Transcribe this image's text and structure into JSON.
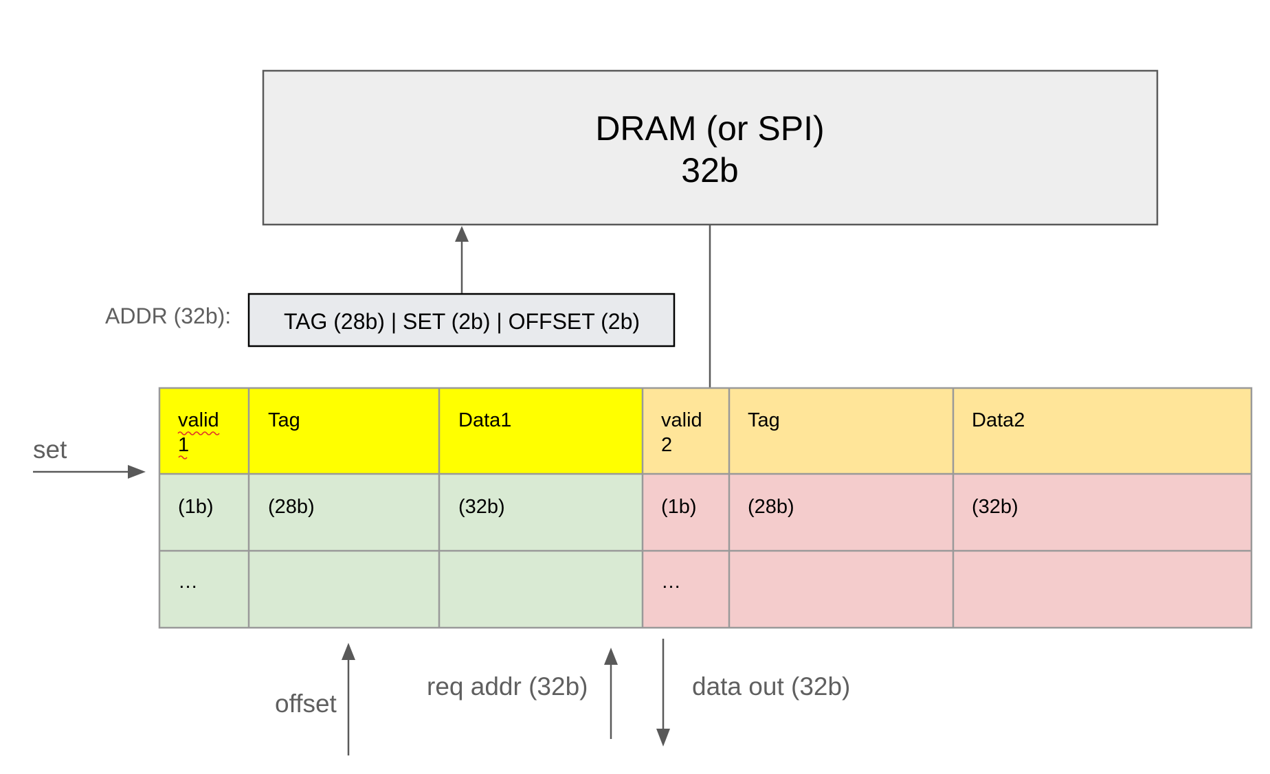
{
  "dram": {
    "line1": "DRAM (or SPI)",
    "line2": "32b"
  },
  "address": {
    "label": "ADDR (32b):",
    "fields": "TAG (28b) | SET (2b) | OFFSET (2b)"
  },
  "cache_table": {
    "way1": {
      "valid_line1": "valid",
      "valid_line2": "1",
      "tag": "Tag",
      "data": "Data1",
      "valid_bits": "(1b)",
      "tag_bits": "(28b)",
      "data_bits": "(32b)",
      "ellipsis": "…"
    },
    "way2": {
      "valid_line1": "valid",
      "valid_line2": "2",
      "tag": "Tag",
      "data": "Data2",
      "valid_bits": "(1b)",
      "tag_bits": "(28b)",
      "data_bits": "(32b)",
      "ellipsis": "…"
    }
  },
  "signals": {
    "set": "set",
    "offset": "offset",
    "req_addr": "req addr (32b)",
    "data_out": "data out (32b)"
  },
  "colors": {
    "dram_fill": "#eeeeee",
    "addr_fill": "#e8eaed",
    "way1_header": "#ffff00",
    "way2_header": "#ffe599",
    "way1_body": "#d9ead3",
    "way2_body": "#f4cccc",
    "grid_line": "#999999",
    "arrow": "#595959"
  }
}
